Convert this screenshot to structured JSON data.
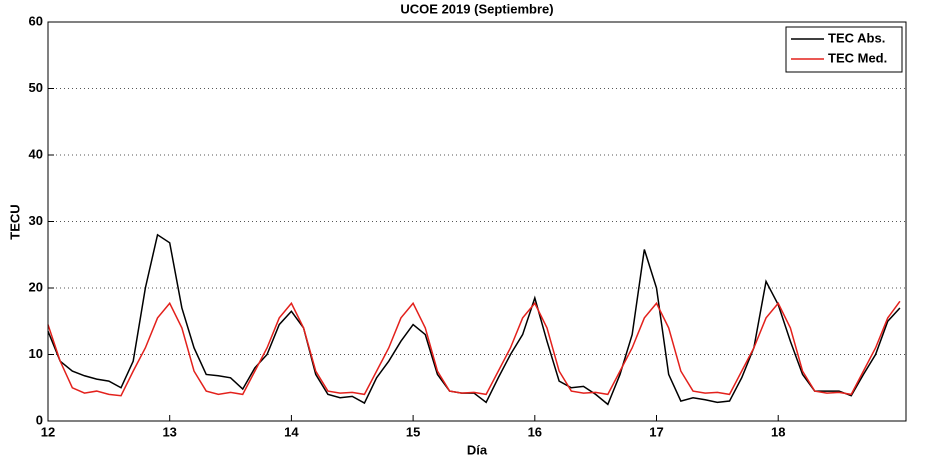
{
  "chart_data": {
    "type": "line",
    "title": "UCOE 2019 (Septiembre)",
    "xlabel": "Día",
    "ylabel": "TECU",
    "x": [
      12.0,
      12.1,
      12.2,
      12.3,
      12.4,
      12.5,
      12.6,
      12.7,
      12.8,
      12.9,
      13.0,
      13.1,
      13.2,
      13.3,
      13.4,
      13.5,
      13.6,
      13.7,
      13.8,
      13.9,
      14.0,
      14.1,
      14.2,
      14.3,
      14.4,
      14.5,
      14.6,
      14.7,
      14.8,
      14.9,
      15.0,
      15.1,
      15.2,
      15.3,
      15.4,
      15.5,
      15.6,
      15.7,
      15.8,
      15.9,
      16.0,
      16.1,
      16.2,
      16.3,
      16.4,
      16.5,
      16.6,
      16.7,
      16.8,
      16.9,
      17.0,
      17.1,
      17.2,
      17.3,
      17.4,
      17.5,
      17.6,
      17.7,
      17.8,
      17.9,
      18.0,
      18.1,
      18.2,
      18.3,
      18.4,
      18.5,
      18.6,
      18.7,
      18.8,
      18.9,
      19.0
    ],
    "series": [
      {
        "name": "TEC Abs.",
        "color": "#000000",
        "values": [
          13.5,
          9,
          7.5,
          6.8,
          6.3,
          6,
          5,
          9,
          20,
          28,
          26.8,
          17,
          11,
          7,
          6.8,
          6.5,
          4.8,
          8,
          10,
          14.5,
          16.5,
          14,
          7,
          4,
          3.5,
          3.7,
          2.7,
          6.5,
          9,
          12,
          14.5,
          13,
          7,
          4.5,
          4.2,
          4.2,
          2.8,
          6.5,
          10,
          13,
          18.5,
          12,
          6,
          5,
          5.2,
          4,
          2.5,
          7,
          13,
          25.8,
          20,
          7,
          3,
          3.5,
          3.2,
          2.8,
          3,
          6.5,
          11,
          21,
          17.5,
          12,
          7,
          4.5,
          4.5,
          4.5,
          3.8,
          7,
          10,
          15,
          17
        ]
      },
      {
        "name": "TEC Med.",
        "color": "#e3211c",
        "values": [
          14.5,
          9,
          5,
          4.2,
          4.5,
          4,
          3.8,
          7.5,
          11,
          15.5,
          17.7,
          14,
          7.5,
          4.5,
          4,
          4.3,
          4,
          7.5,
          11,
          15.5,
          17.7,
          14,
          7.5,
          4.5,
          4.2,
          4.3,
          4,
          7.5,
          11,
          15.5,
          17.7,
          14,
          7.5,
          4.5,
          4.2,
          4.3,
          4,
          7.5,
          11,
          15.5,
          17.7,
          14,
          7.5,
          4.5,
          4.2,
          4.3,
          4,
          7.5,
          11,
          15.5,
          17.7,
          14,
          7.5,
          4.5,
          4.2,
          4.3,
          4,
          7.5,
          11,
          15.5,
          17.7,
          14,
          7.5,
          4.5,
          4.2,
          4.3,
          4,
          7.5,
          11,
          15.5,
          18
        ]
      }
    ],
    "xlim": [
      12,
      19.05
    ],
    "ylim": [
      0,
      60
    ],
    "xticks": [
      12,
      13,
      14,
      15,
      16,
      17,
      18
    ],
    "yticks": [
      0,
      10,
      20,
      30,
      40,
      50,
      60
    ],
    "grid": "y",
    "legend": "upper right"
  }
}
